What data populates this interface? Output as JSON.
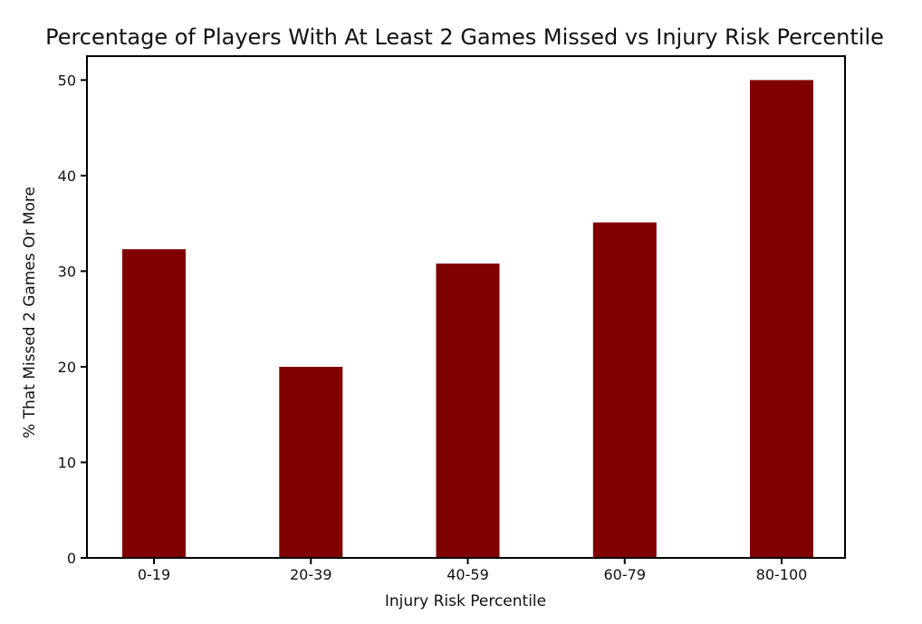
{
  "chart_data": {
    "type": "bar",
    "title": "Percentage of Players With At Least 2 Games Missed vs Injury Risk Percentile",
    "xlabel": "Injury Risk Percentile",
    "ylabel": "% That Missed 2 Games Or More",
    "categories": [
      "0-19",
      "20-39",
      "40-59",
      "60-79",
      "80-100"
    ],
    "values": [
      32.3,
      20.0,
      30.8,
      35.1,
      50.0
    ],
    "yticks": [
      0,
      10,
      20,
      30,
      40,
      50
    ],
    "ylim": [
      0,
      52.5
    ],
    "grid": false,
    "legend": null,
    "bar_color": "#800000",
    "axis_color": "#000000",
    "background_color": "#ffffff"
  }
}
